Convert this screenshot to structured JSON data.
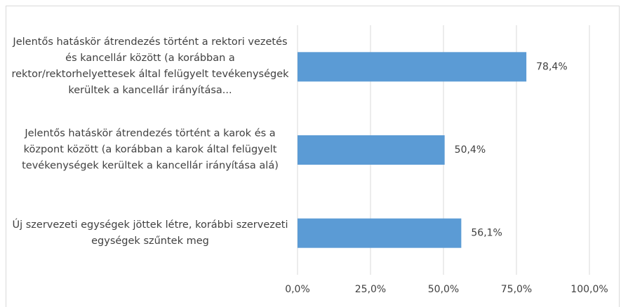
{
  "chart_data": {
    "type": "bar",
    "orientation": "horizontal",
    "categories": [
      "Jelentős hatáskör átrendezés történt a rektori vezetés és kancellár között (a korábban a rektor/rektorhelyettesek által felügyelt tevékenységek kerültek a kancellár irányítása...",
      "Jelentős hatáskör átrendezés történt a karok és a központ között (a korábban a karok által felügyelt tevékenységek kerültek a kancellár irányítása alá)",
      "Új szervezeti egységek jöttek létre, korábbi szervezeti egységek szűntek meg"
    ],
    "values": [
      78.4,
      50.4,
      56.1
    ],
    "value_labels": [
      "78,4%",
      "50,4%",
      "56,1%"
    ],
    "color": "#5b9bd5",
    "xlim": [
      0,
      100
    ],
    "xticks": [
      {
        "value": 0,
        "label": "0,0%"
      },
      {
        "value": 25,
        "label": "25,0%"
      },
      {
        "value": 50,
        "label": "50,0%"
      },
      {
        "value": 75,
        "label": "75,0%"
      },
      {
        "value": 100,
        "label": "100,0%"
      }
    ],
    "grid": true
  }
}
